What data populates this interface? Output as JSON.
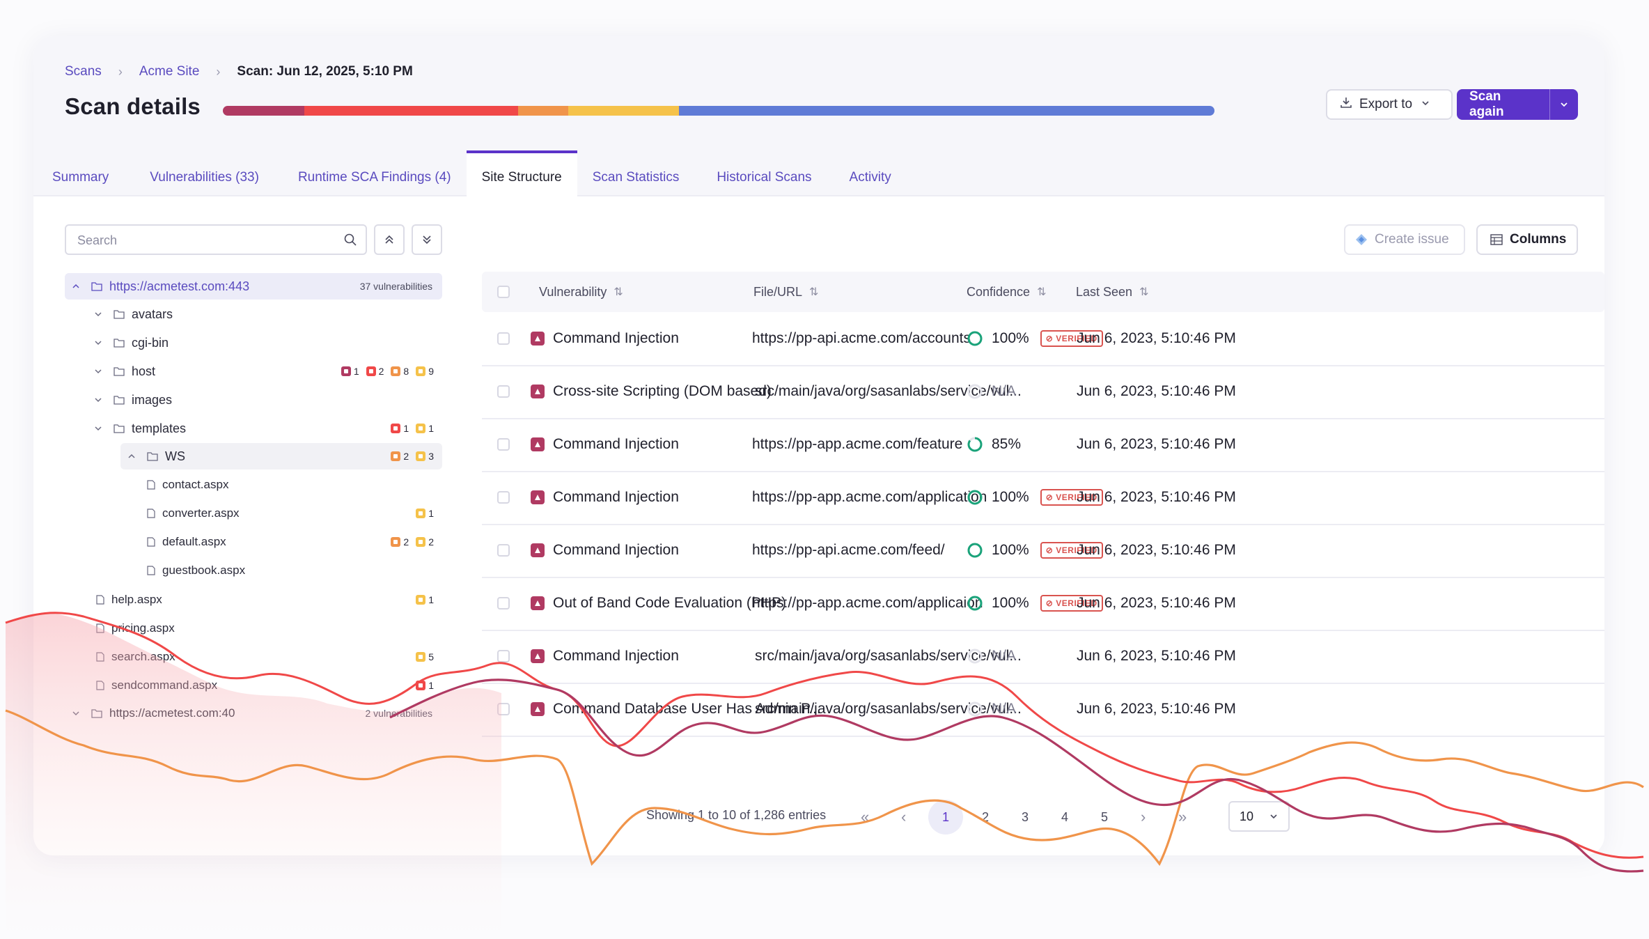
{
  "breadcrumb": {
    "root": "Scans",
    "site": "Acme Site",
    "current": "Scan: Jun 12, 2025, 5:10 PM"
  },
  "page": {
    "title": "Scan details"
  },
  "severity_bar": [
    {
      "color": "#b03a62",
      "fraction": 0.082
    },
    {
      "color": "#f04848",
      "fraction": 0.216
    },
    {
      "color": "#f0944a",
      "fraction": 0.05
    },
    {
      "color": "#f5c24a",
      "fraction": 0.112
    },
    {
      "color": "#5f7bd6",
      "fraction": 0.54
    }
  ],
  "actions": {
    "export": "Export to",
    "scan_again": "Scan again"
  },
  "tabs": [
    "Summary",
    "Vulnerabilities (33)",
    "Runtime SCA Findings (4)",
    "Site Structure",
    "Scan Statistics",
    "Historical Scans",
    "Activity"
  ],
  "active_tab": "Site Structure",
  "tree": {
    "search_placeholder": "Search",
    "root": {
      "label": "https://acmetest.com:443",
      "count": "37 vulnerabilities"
    },
    "folders": {
      "avatars": "avatars",
      "cgibin": "cgi-bin",
      "host": "host",
      "images": "images",
      "templates": "templates",
      "ws": "WS"
    },
    "files": {
      "contact": "contact.aspx",
      "converter": "converter.aspx",
      "default": "default.aspx",
      "guestbook": "guestbook.aspx",
      "help": "help.aspx",
      "pricing": "pricing.aspx",
      "search": "search.aspx",
      "sendcommand": "sendcommand.aspx"
    },
    "badges": {
      "host": [
        "1",
        "2",
        "8",
        "9"
      ],
      "templates": [
        "1",
        "1"
      ],
      "ws": [
        "2",
        "3"
      ],
      "converter": [
        "1"
      ],
      "default": [
        "2",
        "2"
      ],
      "help": [
        "1"
      ],
      "search": [
        "5"
      ],
      "sendcommand": [
        "1"
      ]
    },
    "root2": {
      "label": "https://acmetest.com:40",
      "count": "2 vulnerabilities"
    }
  },
  "toolbar": {
    "create_issue": "Create issue",
    "columns": "Columns"
  },
  "table": {
    "headers": {
      "vulnerability": "Vulnerability",
      "file": "File/URL",
      "confidence": "Confidence",
      "last_seen": "Last Seen"
    },
    "rows": [
      {
        "name": "Command Injection",
        "file": "https://pp-api.acme.com/accounts",
        "confidence": "100%",
        "verified": "VERIFIED",
        "seen": "Jun 6, 2023, 5:10:46 PM"
      },
      {
        "name": "Cross-site Scripting (DOM based)",
        "file": "src/main/java/org/sasanlabs/service/vul...",
        "confidence": "N/A",
        "verified": "",
        "seen": "Jun 6, 2023, 5:10:46 PM"
      },
      {
        "name": "Command Injection",
        "file": "https://pp-app.acme.com/feature",
        "confidence": "85%",
        "verified": "",
        "seen": "Jun 6, 2023, 5:10:46 PM"
      },
      {
        "name": "Command Injection",
        "file": "https://pp-app.acme.com/application",
        "confidence": "100%",
        "verified": "VERIFIED",
        "seen": "Jun 6, 2023, 5:10:46 PM"
      },
      {
        "name": "Command Injection",
        "file": "https://pp-api.acme.com/feed/",
        "confidence": "100%",
        "verified": "VERIFIED",
        "seen": "Jun 6, 2023, 5:10:46 PM"
      },
      {
        "name": "Out of Band Code Evaluation (PHP)",
        "file": "https://pp-app.acme.com/applicaion",
        "confidence": "100%",
        "verified": "VERIFIED",
        "seen": "Jun 6, 2023, 5:10:46 PM"
      },
      {
        "name": "Command Injection",
        "file": "src/main/java/org/sasanlabs/service/vul...",
        "confidence": "N/A",
        "verified": "",
        "seen": "Jun 6, 2023, 5:10:46 PM"
      },
      {
        "name": "Command Database User Has Admin P...",
        "file": "src/main/java/org/sasanlabs/service/vul...",
        "confidence": "N/A",
        "verified": "",
        "seen": "Jun 6, 2023, 5:10:46 PM"
      }
    ]
  },
  "pagination": {
    "summary": "Showing 1 to 10 of 1,286 entries",
    "pages": [
      "1",
      "2",
      "3",
      "4",
      "5"
    ],
    "current": "1",
    "page_size": "10"
  }
}
